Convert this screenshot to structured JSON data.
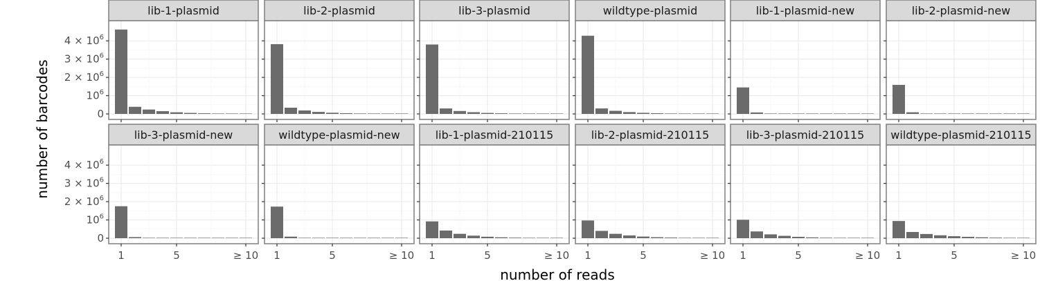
{
  "chart_data": {
    "type": "bar",
    "layout": "facet-grid",
    "facet_rows": 2,
    "facet_cols": 6,
    "xlabel": "number of reads",
    "ylabel": "number of barcodes",
    "x_categories": [
      1,
      2,
      3,
      4,
      5,
      6,
      7,
      8,
      9,
      10
    ],
    "x_ticks": [
      {
        "value": 1,
        "label": "1"
      },
      {
        "value": 5,
        "label": "5"
      },
      {
        "value": 10,
        "label": "≥ 10"
      }
    ],
    "ylim": [
      0,
      4800000
    ],
    "y_ticks": [
      {
        "value": 0,
        "base": "0",
        "sup": ""
      },
      {
        "value": 1000000,
        "base": "10",
        "sup": "6"
      },
      {
        "value": 2000000,
        "base": "2 × 10",
        "sup": "6"
      },
      {
        "value": 3000000,
        "base": "3 × 10",
        "sup": "6"
      },
      {
        "value": 4000000,
        "base": "4 × 10",
        "sup": "6"
      }
    ],
    "grid": true,
    "bar_color": "#6b6b6b",
    "panels": [
      {
        "name": "lib-1-plasmid",
        "values": [
          4620000,
          390000,
          240000,
          150000,
          90000,
          55000,
          35000,
          22000,
          14000,
          10000
        ]
      },
      {
        "name": "lib-2-plasmid",
        "values": [
          3820000,
          340000,
          190000,
          110000,
          65000,
          40000,
          25000,
          16000,
          10000,
          8000
        ]
      },
      {
        "name": "lib-3-plasmid",
        "values": [
          3800000,
          300000,
          160000,
          95000,
          55000,
          35000,
          22000,
          14000,
          9000,
          7000
        ]
      },
      {
        "name": "wildtype-plasmid",
        "values": [
          4280000,
          300000,
          170000,
          100000,
          60000,
          38000,
          24000,
          15000,
          10000,
          8000
        ]
      },
      {
        "name": "lib-1-plasmid-new",
        "values": [
          1450000,
          80000,
          15000,
          5000,
          2000,
          1000,
          600,
          400,
          300,
          300
        ]
      },
      {
        "name": "lib-2-plasmid-new",
        "values": [
          1590000,
          90000,
          16000,
          5000,
          2000,
          1000,
          600,
          400,
          300,
          300
        ]
      },
      {
        "name": "lib-3-plasmid-new",
        "values": [
          1750000,
          60000,
          10000,
          3000,
          1500,
          800,
          500,
          300,
          200,
          200
        ]
      },
      {
        "name": "wildtype-plasmid-new",
        "values": [
          1730000,
          85000,
          14000,
          4000,
          1500,
          800,
          500,
          300,
          200,
          200
        ]
      },
      {
        "name": "lib-1-plasmid-210115",
        "values": [
          920000,
          420000,
          240000,
          140000,
          80000,
          50000,
          30000,
          20000,
          12000,
          8000
        ]
      },
      {
        "name": "lib-2-plasmid-210115",
        "values": [
          970000,
          400000,
          240000,
          150000,
          90000,
          55000,
          35000,
          22000,
          14000,
          10000
        ]
      },
      {
        "name": "lib-3-plasmid-210115",
        "values": [
          1010000,
          370000,
          210000,
          130000,
          75000,
          45000,
          28000,
          18000,
          11000,
          8000
        ]
      },
      {
        "name": "wildtype-plasmid-210115",
        "values": [
          940000,
          340000,
          230000,
          160000,
          110000,
          75000,
          50000,
          32000,
          20000,
          14000
        ]
      }
    ]
  }
}
